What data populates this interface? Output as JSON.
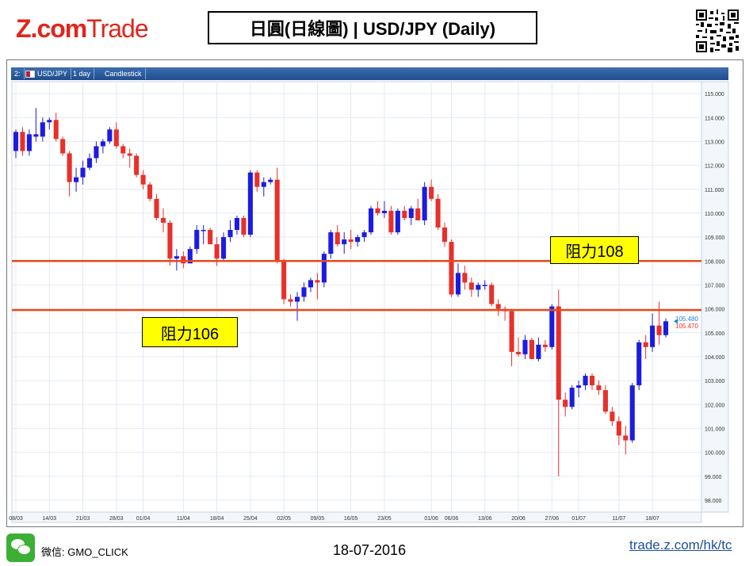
{
  "header": {
    "logo_brand": "Z.com",
    "logo_suffix": "Trade",
    "title": "日圓(日線圖) | USD/JPY  (Daily)"
  },
  "toolbar": {
    "index": "2:",
    "symbol": "USD/JPY",
    "interval": "1 day",
    "chart_type": "Candlestick"
  },
  "colors": {
    "up": "#1c1ce0",
    "down": "#e8302a",
    "resistance": "#e84a1a",
    "callout_bg": "#ffff00",
    "last_blue": "#1e7fd6",
    "last_red": "#e8302a"
  },
  "callouts": [
    {
      "label": "阻力108"
    },
    {
      "label": "阻力106"
    }
  ],
  "chart_data": {
    "type": "candlestick",
    "title": "",
    "ylim": [
      97.5,
      115.5
    ],
    "y_ticks": [
      "115.000",
      "114.000",
      "113.000",
      "112.000",
      "111.000",
      "110.000",
      "109.000",
      "108.000",
      "107.000",
      "106.000",
      "105.000",
      "104.000",
      "103.000",
      "102.000",
      "101.000",
      "100.000",
      "99.000",
      "98.000"
    ],
    "x_tick_labels": [
      {
        "i": 0,
        "label": "08/03"
      },
      {
        "i": 5,
        "label": "14/03"
      },
      {
        "i": 10,
        "label": "21/03"
      },
      {
        "i": 15,
        "label": "28/03"
      },
      {
        "i": 19,
        "label": "01/04"
      },
      {
        "i": 25,
        "label": "11/04"
      },
      {
        "i": 30,
        "label": "18/04"
      },
      {
        "i": 35,
        "label": "25/04"
      },
      {
        "i": 40,
        "label": "02/05"
      },
      {
        "i": 45,
        "label": "09/05"
      },
      {
        "i": 50,
        "label": "16/05"
      },
      {
        "i": 55,
        "label": "23/05"
      },
      {
        "i": 62,
        "label": "01/06"
      },
      {
        "i": 65,
        "label": "06/06"
      },
      {
        "i": 70,
        "label": "13/06"
      },
      {
        "i": 75,
        "label": "20/06"
      },
      {
        "i": 80,
        "label": "27/06"
      },
      {
        "i": 84,
        "label": "01/07"
      },
      {
        "i": 90,
        "label": "11/07"
      },
      {
        "i": 95,
        "label": "18/07"
      }
    ],
    "resistance_levels": [
      108.0,
      105.95
    ],
    "last_prices": {
      "ask": "105.480",
      "bid": "105.470"
    },
    "candles": [
      {
        "o": 112.6,
        "h": 113.5,
        "l": 112.3,
        "c": 113.4
      },
      {
        "o": 113.4,
        "h": 113.6,
        "l": 112.4,
        "c": 112.6
      },
      {
        "o": 112.6,
        "h": 113.5,
        "l": 112.4,
        "c": 113.3
      },
      {
        "o": 113.2,
        "h": 114.4,
        "l": 113.0,
        "c": 113.3
      },
      {
        "o": 113.2,
        "h": 114.0,
        "l": 113.0,
        "c": 113.8
      },
      {
        "o": 113.8,
        "h": 114.0,
        "l": 113.5,
        "c": 113.9
      },
      {
        "o": 113.9,
        "h": 114.2,
        "l": 113.0,
        "c": 113.1
      },
      {
        "o": 113.1,
        "h": 113.2,
        "l": 112.4,
        "c": 112.5
      },
      {
        "o": 112.5,
        "h": 112.6,
        "l": 110.7,
        "c": 111.3
      },
      {
        "o": 111.3,
        "h": 111.9,
        "l": 110.9,
        "c": 111.5
      },
      {
        "o": 111.5,
        "h": 112.2,
        "l": 111.2,
        "c": 111.9
      },
      {
        "o": 111.9,
        "h": 112.5,
        "l": 111.8,
        "c": 112.3
      },
      {
        "o": 112.3,
        "h": 113.0,
        "l": 112.1,
        "c": 112.8
      },
      {
        "o": 112.8,
        "h": 113.1,
        "l": 112.5,
        "c": 113.0
      },
      {
        "o": 113.0,
        "h": 113.6,
        "l": 112.9,
        "c": 113.5
      },
      {
        "o": 113.5,
        "h": 113.8,
        "l": 112.7,
        "c": 112.8
      },
      {
        "o": 112.8,
        "h": 112.9,
        "l": 112.3,
        "c": 112.5
      },
      {
        "o": 112.5,
        "h": 112.7,
        "l": 111.9,
        "c": 112.4
      },
      {
        "o": 112.4,
        "h": 112.5,
        "l": 111.5,
        "c": 111.6
      },
      {
        "o": 111.6,
        "h": 111.8,
        "l": 111.0,
        "c": 111.2
      },
      {
        "o": 111.2,
        "h": 111.3,
        "l": 110.5,
        "c": 110.6
      },
      {
        "o": 110.6,
        "h": 110.8,
        "l": 109.7,
        "c": 109.8
      },
      {
        "o": 109.8,
        "h": 110.2,
        "l": 109.2,
        "c": 109.6
      },
      {
        "o": 109.6,
        "h": 109.7,
        "l": 107.8,
        "c": 108.1
      },
      {
        "o": 108.1,
        "h": 108.5,
        "l": 107.6,
        "c": 108.2
      },
      {
        "o": 108.2,
        "h": 108.4,
        "l": 107.7,
        "c": 107.9
      },
      {
        "o": 107.9,
        "h": 108.6,
        "l": 107.9,
        "c": 108.5
      },
      {
        "o": 108.5,
        "h": 109.5,
        "l": 108.3,
        "c": 109.3
      },
      {
        "o": 109.3,
        "h": 109.5,
        "l": 108.7,
        "c": 109.3
      },
      {
        "o": 109.3,
        "h": 109.4,
        "l": 108.7,
        "c": 108.7
      },
      {
        "o": 108.7,
        "h": 109.0,
        "l": 107.8,
        "c": 108.1
      },
      {
        "o": 108.1,
        "h": 109.2,
        "l": 108.0,
        "c": 109.0
      },
      {
        "o": 109.0,
        "h": 109.7,
        "l": 108.8,
        "c": 109.3
      },
      {
        "o": 109.3,
        "h": 109.9,
        "l": 109.1,
        "c": 109.8
      },
      {
        "o": 109.8,
        "h": 109.9,
        "l": 109.0,
        "c": 109.1
      },
      {
        "o": 109.1,
        "h": 111.8,
        "l": 109.0,
        "c": 111.7
      },
      {
        "o": 111.7,
        "h": 111.8,
        "l": 110.9,
        "c": 111.1
      },
      {
        "o": 111.1,
        "h": 111.5,
        "l": 110.7,
        "c": 111.3
      },
      {
        "o": 111.3,
        "h": 111.5,
        "l": 111.2,
        "c": 111.4
      },
      {
        "o": 111.4,
        "h": 111.9,
        "l": 107.9,
        "c": 108.0
      },
      {
        "o": 108.0,
        "h": 108.1,
        "l": 106.2,
        "c": 106.4
      },
      {
        "o": 106.4,
        "h": 106.6,
        "l": 106.1,
        "c": 106.3
      },
      {
        "o": 106.3,
        "h": 106.7,
        "l": 105.5,
        "c": 106.5
      },
      {
        "o": 106.5,
        "h": 107.1,
        "l": 106.3,
        "c": 106.9
      },
      {
        "o": 106.9,
        "h": 107.3,
        "l": 106.7,
        "c": 107.2
      },
      {
        "o": 107.2,
        "h": 107.5,
        "l": 106.4,
        "c": 107.1
      },
      {
        "o": 107.1,
        "h": 108.4,
        "l": 106.9,
        "c": 108.3
      },
      {
        "o": 108.3,
        "h": 109.3,
        "l": 108.1,
        "c": 109.2
      },
      {
        "o": 109.2,
        "h": 109.5,
        "l": 108.6,
        "c": 108.7
      },
      {
        "o": 108.7,
        "h": 109.2,
        "l": 108.3,
        "c": 108.9
      },
      {
        "o": 108.9,
        "h": 109.3,
        "l": 108.5,
        "c": 108.8
      },
      {
        "o": 108.8,
        "h": 109.1,
        "l": 108.6,
        "c": 109.0
      },
      {
        "o": 109.0,
        "h": 109.3,
        "l": 108.8,
        "c": 109.2
      },
      {
        "o": 109.2,
        "h": 110.3,
        "l": 109.1,
        "c": 110.2
      },
      {
        "o": 110.2,
        "h": 110.5,
        "l": 109.9,
        "c": 110.0
      },
      {
        "o": 110.0,
        "h": 110.5,
        "l": 109.8,
        "c": 110.1
      },
      {
        "o": 110.1,
        "h": 110.3,
        "l": 109.1,
        "c": 109.2
      },
      {
        "o": 109.2,
        "h": 110.2,
        "l": 109.1,
        "c": 110.1
      },
      {
        "o": 110.1,
        "h": 110.3,
        "l": 109.7,
        "c": 109.8
      },
      {
        "o": 109.8,
        "h": 110.3,
        "l": 109.5,
        "c": 110.2
      },
      {
        "o": 110.2,
        "h": 110.6,
        "l": 109.7,
        "c": 109.7
      },
      {
        "o": 109.7,
        "h": 111.3,
        "l": 109.5,
        "c": 111.1
      },
      {
        "o": 111.1,
        "h": 111.4,
        "l": 110.5,
        "c": 110.6
      },
      {
        "o": 110.6,
        "h": 110.8,
        "l": 109.3,
        "c": 109.4
      },
      {
        "o": 109.4,
        "h": 109.6,
        "l": 108.6,
        "c": 108.8
      },
      {
        "o": 108.8,
        "h": 108.9,
        "l": 106.5,
        "c": 106.6
      },
      {
        "o": 106.6,
        "h": 107.9,
        "l": 106.5,
        "c": 107.5
      },
      {
        "o": 107.5,
        "h": 107.8,
        "l": 106.8,
        "c": 107.1
      },
      {
        "o": 107.1,
        "h": 107.3,
        "l": 106.5,
        "c": 106.8
      },
      {
        "o": 106.8,
        "h": 107.1,
        "l": 106.5,
        "c": 107.0
      },
      {
        "o": 107.0,
        "h": 107.2,
        "l": 106.8,
        "c": 107.0
      },
      {
        "o": 107.0,
        "h": 107.1,
        "l": 106.1,
        "c": 106.2
      },
      {
        "o": 106.2,
        "h": 106.4,
        "l": 105.7,
        "c": 106.0
      },
      {
        "o": 106.0,
        "h": 106.1,
        "l": 105.5,
        "c": 105.9
      },
      {
        "o": 105.9,
        "h": 106.0,
        "l": 103.6,
        "c": 104.2
      },
      {
        "o": 104.2,
        "h": 104.8,
        "l": 104.0,
        "c": 104.1
      },
      {
        "o": 104.1,
        "h": 104.9,
        "l": 103.9,
        "c": 104.7
      },
      {
        "o": 104.7,
        "h": 104.8,
        "l": 103.9,
        "c": 103.9
      },
      {
        "o": 103.9,
        "h": 104.8,
        "l": 103.8,
        "c": 104.5
      },
      {
        "o": 104.5,
        "h": 104.7,
        "l": 104.2,
        "c": 104.4
      },
      {
        "o": 104.4,
        "h": 106.2,
        "l": 104.3,
        "c": 106.1
      },
      {
        "o": 106.1,
        "h": 106.8,
        "l": 99.0,
        "c": 102.2
      },
      {
        "o": 102.2,
        "h": 102.5,
        "l": 101.5,
        "c": 101.9
      },
      {
        "o": 101.9,
        "h": 102.8,
        "l": 101.8,
        "c": 102.7
      },
      {
        "o": 102.7,
        "h": 103.0,
        "l": 102.3,
        "c": 102.8
      },
      {
        "o": 102.8,
        "h": 103.3,
        "l": 102.6,
        "c": 103.2
      },
      {
        "o": 103.2,
        "h": 103.3,
        "l": 102.6,
        "c": 102.8
      },
      {
        "o": 102.8,
        "h": 103.0,
        "l": 102.4,
        "c": 102.6
      },
      {
        "o": 102.6,
        "h": 102.8,
        "l": 101.6,
        "c": 101.7
      },
      {
        "o": 101.7,
        "h": 101.9,
        "l": 101.1,
        "c": 101.3
      },
      {
        "o": 101.3,
        "h": 101.5,
        "l": 100.3,
        "c": 100.7
      },
      {
        "o": 100.7,
        "h": 101.1,
        "l": 99.9,
        "c": 100.5
      },
      {
        "o": 100.5,
        "h": 102.9,
        "l": 100.4,
        "c": 102.8
      },
      {
        "o": 102.8,
        "h": 104.7,
        "l": 102.6,
        "c": 104.6
      },
      {
        "o": 104.6,
        "h": 104.9,
        "l": 103.9,
        "c": 104.4
      },
      {
        "o": 104.4,
        "h": 105.8,
        "l": 104.2,
        "c": 105.3
      },
      {
        "o": 105.3,
        "h": 106.3,
        "l": 104.5,
        "c": 104.9
      },
      {
        "o": 104.9,
        "h": 105.6,
        "l": 104.8,
        "c": 105.48
      }
    ]
  },
  "footer": {
    "wechat": "微信: GMO_CLICK",
    "date": "18-07-2016",
    "link": "trade.z.com/hk/tc"
  }
}
